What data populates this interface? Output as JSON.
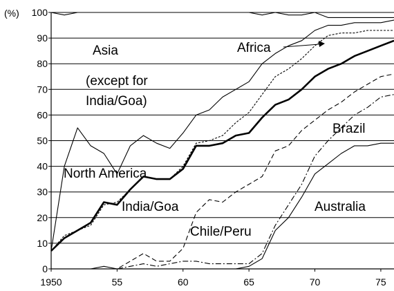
{
  "chart_data": {
    "type": "line",
    "ylabel": "(%)",
    "xlim": [
      1950,
      1976
    ],
    "ylim": [
      0,
      100
    ],
    "x_ticks": [
      {
        "value": 1950,
        "label": "1950"
      },
      {
        "value": 1955,
        "label": "55"
      },
      {
        "value": 1960,
        "label": "60"
      },
      {
        "value": 1965,
        "label": "65"
      },
      {
        "value": 1970,
        "label": "70"
      },
      {
        "value": 1975,
        "label": "75"
      }
    ],
    "y_ticks": [
      {
        "value": 0,
        "label": "0"
      },
      {
        "value": 10,
        "label": "10"
      },
      {
        "value": 20,
        "label": "20"
      },
      {
        "value": 30,
        "label": "30"
      },
      {
        "value": 40,
        "label": "40"
      },
      {
        "value": 50,
        "label": "50"
      },
      {
        "value": 60,
        "label": "60"
      },
      {
        "value": 70,
        "label": "70"
      },
      {
        "value": 80,
        "label": "80"
      },
      {
        "value": 90,
        "label": "90"
      },
      {
        "value": 100,
        "label": "100"
      }
    ],
    "grid": true,
    "series": [
      {
        "name": "Asia (except for India/Goa)",
        "style": "solid-thin",
        "x": [
          1950,
          1951,
          1952,
          1953,
          1954,
          1955,
          1956,
          1957,
          1958,
          1959,
          1960,
          1961,
          1962,
          1963,
          1964,
          1965,
          1966,
          1967,
          1968,
          1969,
          1970,
          1971,
          1972,
          1973,
          1974,
          1975,
          1976
        ],
        "y": [
          100,
          99,
          100,
          100,
          100,
          100,
          100,
          100,
          100,
          100,
          100,
          100,
          100,
          100,
          100,
          100,
          99,
          100,
          99,
          99,
          100,
          98,
          98,
          98,
          98,
          98,
          98
        ]
      },
      {
        "name": "Africa",
        "style": "solid-thin",
        "x": [
          1950,
          1951,
          1952,
          1953,
          1954,
          1955,
          1956,
          1957,
          1958,
          1959,
          1960,
          1961,
          1962,
          1963,
          1964,
          1965,
          1966,
          1967,
          1968,
          1969,
          1970,
          1971,
          1972,
          1973,
          1974,
          1975,
          1976
        ],
        "y": [
          7,
          40,
          55,
          48,
          45,
          37,
          48,
          52,
          49,
          47,
          53,
          60,
          62,
          67,
          70,
          73,
          80,
          84,
          87,
          89,
          93,
          95,
          95,
          96,
          96,
          96,
          97
        ]
      },
      {
        "name": "North America",
        "style": "dashed-fine",
        "x": [
          1950,
          1951,
          1952,
          1953,
          1954,
          1955,
          1956,
          1957,
          1958,
          1959,
          1960,
          1961,
          1962,
          1963,
          1964,
          1965,
          1966,
          1967,
          1968,
          1969,
          1970,
          1971,
          1972,
          1973,
          1974,
          1975,
          1976
        ],
        "y": [
          7,
          13,
          15,
          17,
          25,
          26,
          31,
          36,
          35,
          35,
          40,
          49,
          50,
          52,
          57,
          61,
          68,
          75,
          78,
          82,
          87,
          91,
          92,
          92,
          93,
          93,
          93
        ]
      },
      {
        "name": "India/Goa",
        "style": "solid-thick",
        "x": [
          1950,
          1951,
          1952,
          1953,
          1954,
          1955,
          1956,
          1957,
          1958,
          1959,
          1960,
          1961,
          1962,
          1963,
          1964,
          1965,
          1966,
          1967,
          1968,
          1969,
          1970,
          1971,
          1972,
          1973,
          1974,
          1975,
          1976
        ],
        "y": [
          7,
          12,
          15,
          18,
          26,
          25,
          31,
          36,
          35,
          35,
          39,
          48,
          48,
          49,
          52,
          53,
          59,
          64,
          66,
          70,
          75,
          78,
          80,
          83,
          85,
          87,
          89
        ]
      },
      {
        "name": "Brazil",
        "style": "dashed",
        "x": [
          1950,
          1951,
          1952,
          1953,
          1954,
          1955,
          1956,
          1957,
          1958,
          1959,
          1960,
          1961,
          1962,
          1963,
          1964,
          1965,
          1966,
          1967,
          1968,
          1969,
          1970,
          1971,
          1972,
          1973,
          1974,
          1975,
          1976
        ],
        "y": [
          0,
          0,
          0,
          0,
          0,
          0,
          3,
          6,
          3,
          3,
          8,
          22,
          27,
          26,
          30,
          33,
          36,
          46,
          48,
          54,
          58,
          62,
          65,
          69,
          72,
          75,
          76
        ]
      },
      {
        "name": "Chile/Peru",
        "style": "dash-dot",
        "x": [
          1950,
          1951,
          1952,
          1953,
          1954,
          1955,
          1956,
          1957,
          1958,
          1959,
          1960,
          1961,
          1962,
          1963,
          1964,
          1965,
          1966,
          1967,
          1968,
          1969,
          1970,
          1971,
          1972,
          1973,
          1974,
          1975,
          1976
        ],
        "y": [
          0,
          0,
          0,
          0,
          0,
          0,
          1,
          2,
          1,
          2,
          3,
          3,
          2,
          2,
          2,
          2,
          6,
          17,
          25,
          33,
          44,
          50,
          55,
          60,
          63,
          67,
          68
        ]
      },
      {
        "name": "Australia",
        "style": "solid-thin",
        "x": [
          1950,
          1951,
          1952,
          1953,
          1954,
          1955,
          1956,
          1957,
          1958,
          1959,
          1960,
          1961,
          1962,
          1963,
          1964,
          1965,
          1966,
          1967,
          1968,
          1969,
          1970,
          1971,
          1972,
          1973,
          1974,
          1975,
          1976
        ],
        "y": [
          0,
          0,
          0,
          0,
          1,
          0,
          0,
          0,
          0,
          0,
          0,
          0,
          0,
          0,
          0,
          1,
          4,
          15,
          20,
          28,
          37,
          41,
          45,
          48,
          48,
          49,
          49
        ]
      }
    ],
    "labels": {
      "asia": "Asia",
      "asia_note1": "(except for",
      "asia_note2": "India/Goa)",
      "africa": "Africa",
      "north_america": "North America",
      "india_goa": "India/Goa",
      "brazil": "Brazil",
      "chile_peru": "Chile/Peru",
      "australia": "Australia"
    }
  }
}
